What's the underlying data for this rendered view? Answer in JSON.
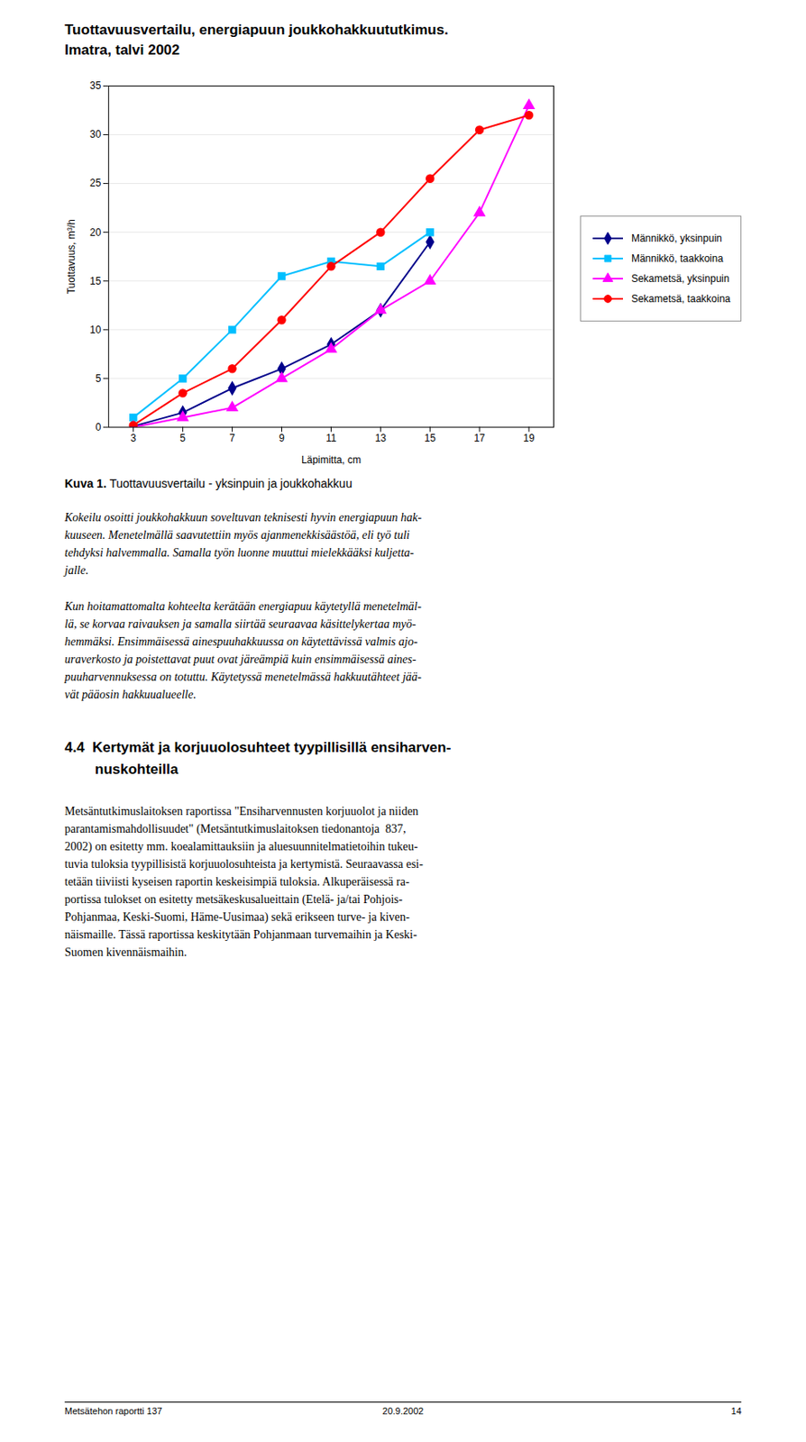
{
  "chart_data": {
    "type": "line",
    "title": "Tuottavuusvertailu, energiapuun joukkohakkuututkimus.",
    "subtitle": "Imatra, talvi 2002",
    "xlabel": "Läpimitta, cm",
    "ylabel": "Tuottavuus, m³/h",
    "x": [
      3,
      5,
      7,
      9,
      11,
      13,
      15,
      17,
      19
    ],
    "xlim": [
      2,
      20
    ],
    "ylim": [
      0,
      35
    ],
    "xticks": [
      3,
      5,
      7,
      9,
      11,
      13,
      15,
      17,
      19
    ],
    "yticks": [
      0,
      5,
      10,
      15,
      20,
      25,
      30,
      35
    ],
    "grid": true,
    "legend": "right",
    "series": [
      {
        "name": "Männikkö, yksinpuin",
        "color": "#00008B",
        "marker": "diamond",
        "values": [
          0.1,
          1.5,
          4.0,
          6.0,
          8.5,
          12.0,
          19.0,
          null,
          null
        ]
      },
      {
        "name": "Männikkö, taakkoina",
        "color": "#00BFFF",
        "marker": "square",
        "values": [
          1.0,
          5.0,
          10.0,
          15.5,
          17.0,
          16.5,
          20.0,
          null,
          null
        ]
      },
      {
        "name": "Sekametsä, yksinpuin",
        "color": "#FF00FF",
        "marker": "triangle",
        "values": [
          0.0,
          1.0,
          2.0,
          5.0,
          8.0,
          12.0,
          15.0,
          22.0,
          33.0
        ]
      },
      {
        "name": "Sekametsä, taakkoina",
        "color": "#FF0000",
        "marker": "circle",
        "values": [
          0.2,
          3.5,
          6.0,
          11.0,
          16.5,
          20.0,
          25.5,
          30.5,
          32.0
        ]
      }
    ]
  },
  "caption": {
    "label": "Kuva 1.",
    "text": " Tuottavuusvertailu - yksinpuin ja joukkohakkuu"
  },
  "paragraphs": [
    [
      "Kokeilu osoitti joukkohakkuun soveltuvan teknisesti hyvin energiapuun hak-",
      "kuuseen. Menetelmällä saavutettiin myös ajanmenekkisäästöä, eli työ tuli",
      "tehdyksi halvemmalla. Samalla työn luonne muuttui mielekkääksi kuljetta-",
      "jalle."
    ],
    [
      "Kun hoitamattomalta kohteelta kerätään energiapuu käytetyllä menetelmäl-",
      "lä, se korvaa raivauksen ja samalla siirtää seuraavaa käsittelykertaa myö-",
      "hemmäksi. Ensimmäisessä ainespuuhakkuussa on käytettävissä valmis ajo-",
      "uraverkosto ja poistettavat puut ovat järeämpiä kuin ensimmäisessä aines-",
      "puuharvennuksessa on totuttu. Käytetyssä menetelmässä hakkuutähteet jää-",
      "vät pääosin hakkuualueelle."
    ]
  ],
  "section_heading": [
    "4.4  Kertymät ja korjuuolosuhteet tyypillisillä ensiharven-",
    "nuskohteilla"
  ],
  "section_paragraph": [
    "Metsäntutkimuslaitoksen raportissa \"Ensiharvennusten korjuuolot ja niiden",
    "parantamismahdollisuudet\" (Metsäntutkimuslaitoksen tiedonantoja  837,",
    "2002) on esitetty mm. koealamittauksiin ja aluesuunnitelmatietoihin tukeu-",
    "tuvia tuloksia tyypillisistä korjuuolosuhteista ja kertymistä. Seuraavassa esi-",
    "tetään tiiviisti kyseisen raportin keskeisimpiä tuloksia. Alkuperäisessä ra-",
    "portissa tulokset on esitetty metsäkeskusalueittain (Etelä- ja/tai Pohjois-",
    "Pohjanmaa, Keski-Suomi, Häme-Uusimaa) sekä erikseen turve- ja kiven-",
    "näismaille. Tässä raportissa keskitytään Pohjanmaan turvemaihin ja Keski-",
    "Suomen kivennäismaihin."
  ],
  "footer": {
    "left": "Metsätehon raportti 137",
    "center": "20.9.2002",
    "right": "14"
  }
}
